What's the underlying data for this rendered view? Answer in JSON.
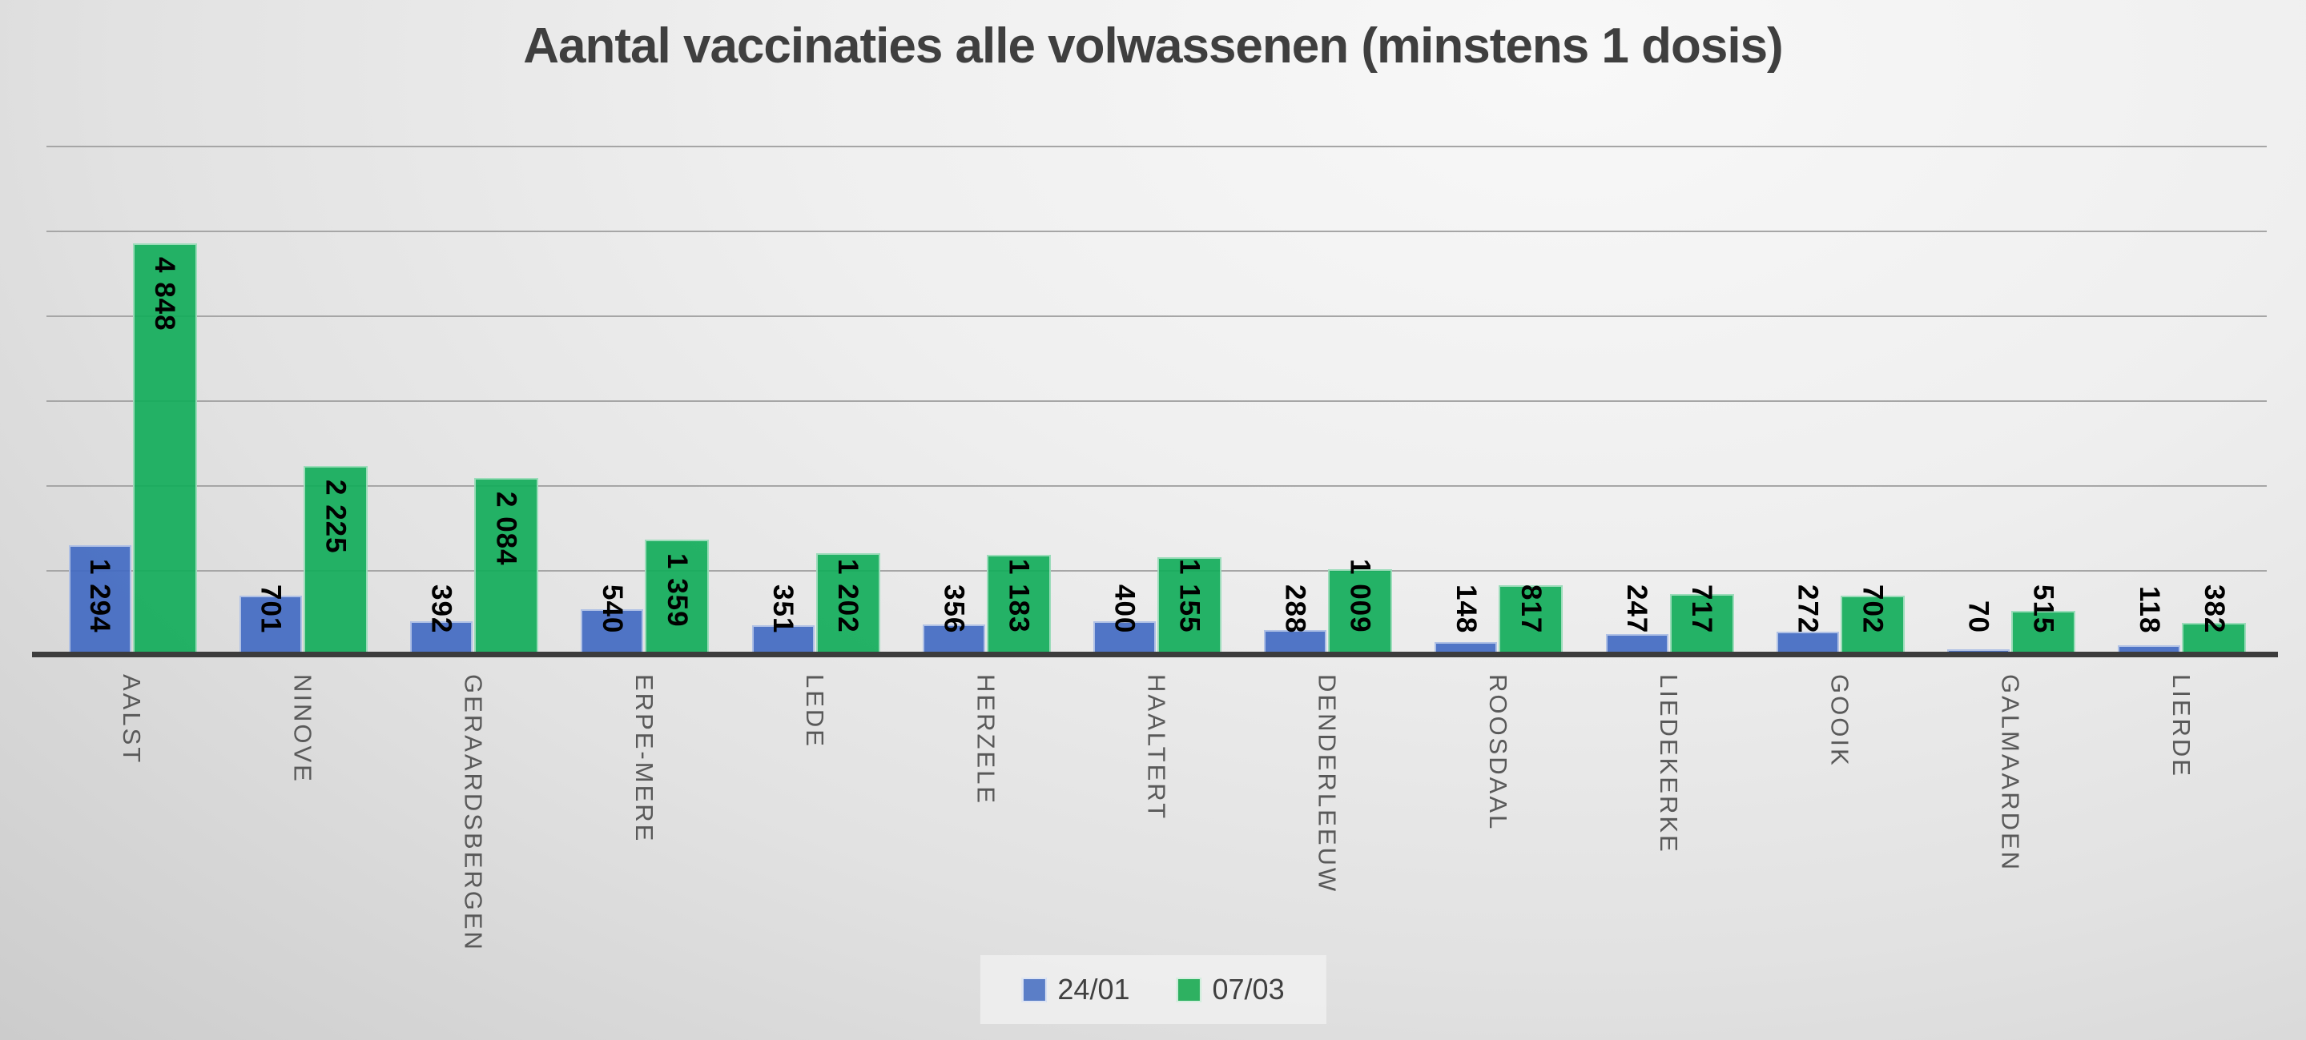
{
  "title": "Aantal vaccinaties alle volwassenen (minstens 1 dosis)",
  "chart_data": {
    "type": "bar",
    "categories": [
      "AALST",
      "NINOVE",
      "GERAARDSBERGEN",
      "ERPE-MERE",
      "LEDE",
      "HERZELE",
      "HAALTERT",
      "DENDERLEEUW",
      "ROOSDAAL",
      "LIEDEKERKE",
      "GOOIK",
      "GALMAARDEN",
      "LIERDE"
    ],
    "series": [
      {
        "name": "24/01",
        "color": "#5578C6",
        "values": [
          1294,
          701,
          392,
          540,
          351,
          356,
          400,
          288,
          148,
          247,
          272,
          70,
          118
        ],
        "labels": [
          "1 294",
          "701",
          "392",
          "540",
          "351",
          "356",
          "400",
          "288",
          "148",
          "247",
          "272",
          "70",
          "118"
        ]
      },
      {
        "name": "07/03",
        "color": "#23B264",
        "values": [
          4848,
          2225,
          2084,
          1359,
          1202,
          1183,
          1155,
          1009,
          817,
          717,
          702,
          515,
          382
        ],
        "labels": [
          "4 848",
          "2 225",
          "2 084",
          "1 359",
          "1 202",
          "1 183",
          "1 155",
          "1 009",
          "817",
          "717",
          "702",
          "515",
          "382"
        ]
      }
    ],
    "ylim": [
      0,
      6000
    ],
    "gridline_step": 1000,
    "grid": true,
    "y_axis_labels_visible": false,
    "legend_position": "bottom",
    "data_label_orientation": "vertical",
    "category_label_orientation": "vertical"
  },
  "legend": {
    "items": [
      {
        "label": "24/01",
        "color": "#5b7ec7"
      },
      {
        "label": "07/03",
        "color": "#2eb161"
      }
    ]
  },
  "colors": {
    "title": "#3f3f3f",
    "axis_line": "#3c3c3c",
    "gridline": "#a6a6a6",
    "data_label": "#000000",
    "category_label": "#595959",
    "background_light": "#f8f8f8",
    "background_dark": "#cccccc",
    "legend_background": "#efefef"
  }
}
